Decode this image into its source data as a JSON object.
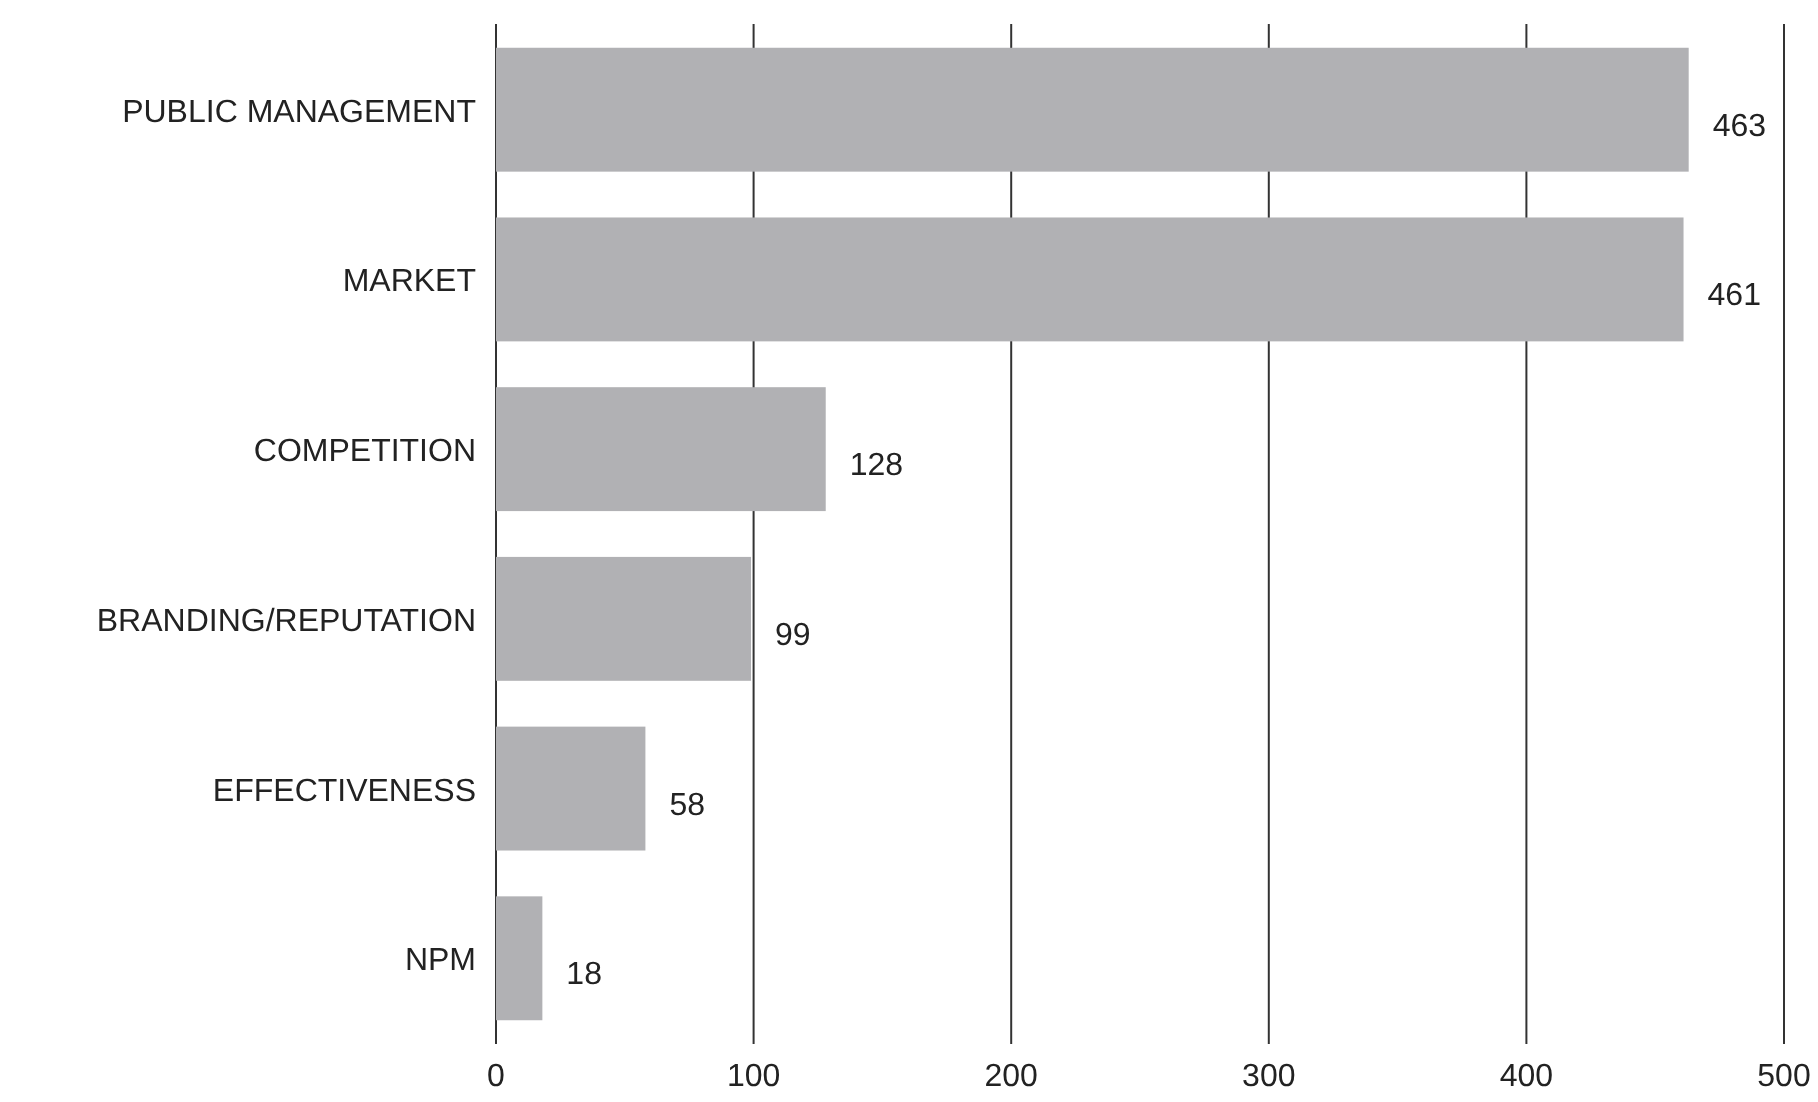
{
  "chart_data": {
    "type": "bar",
    "orientation": "horizontal",
    "categories": [
      "PUBLIC MANAGEMENT",
      "MARKET",
      "COMPETITION",
      "BRANDING/REPUTATION",
      "EFFECTIVENESS",
      "NPM"
    ],
    "values": [
      463,
      461,
      128,
      99,
      58,
      18
    ],
    "color": "#b1b1b4",
    "xlim": [
      0,
      500
    ],
    "xticks": [
      0,
      100,
      200,
      300,
      400,
      500
    ],
    "grid": "x",
    "data_labels": true
  }
}
